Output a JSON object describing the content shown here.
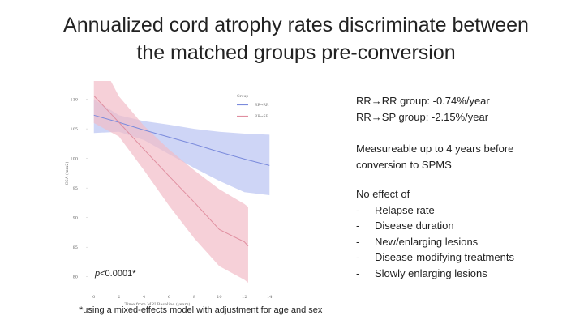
{
  "slide": {
    "title_line1": "Annualized cord atrophy rates discriminate between",
    "title_line2": "the matched groups pre-conversion",
    "rates": {
      "rr_rr": "RR→RR group: -0.74%/year",
      "rr_sp": "RR→SP group: -2.15%/year"
    },
    "measureable": "Measureable up to 4 years before conversion to SPMS",
    "no_effect": {
      "heading": "No effect of",
      "items": [
        "Relapse rate",
        "Disease duration",
        "New/enlarging lesions",
        "Disease-modifying treatments",
        "Slowly enlarging lesions"
      ]
    },
    "p_value_label": "p",
    "p_value_rest": "<0.0001*",
    "footnote": "*using a mixed-effects model with adjustment for age and sex"
  },
  "chart_data": {
    "type": "line",
    "title": "",
    "xlabel": "Time from MRI Baseline (years)",
    "ylabel": "CSA (mm2)",
    "xlim": [
      -0.5,
      14.5
    ],
    "ylim": [
      77.5,
      112
    ],
    "xticks": [
      0,
      2,
      4,
      6,
      8,
      10,
      12,
      14
    ],
    "yticks": [
      80,
      85,
      90,
      95,
      100,
      105,
      110
    ],
    "legend": {
      "title": "Group",
      "position": "top-right"
    },
    "series": [
      {
        "name": "RR→RR",
        "color": "#7b8bdc",
        "band_color": "#b9c3f2",
        "x": [
          0,
          2,
          4,
          6,
          8,
          10,
          12,
          14
        ],
        "y": [
          107.3,
          106.1,
          104.8,
          103.6,
          102.4,
          101.1,
          99.9,
          98.8
        ],
        "lower": [
          104.3,
          104.5,
          103.1,
          100.7,
          98.4,
          96.2,
          94.3,
          93.8
        ],
        "upper": [
          110.0,
          107.3,
          106.3,
          105.7,
          105.0,
          104.5,
          104.2,
          104.0
        ]
      },
      {
        "name": "RR→SP",
        "color": "#e08fa0",
        "band_color": "#f2bcc7",
        "x": [
          0,
          2,
          4,
          6,
          8,
          10,
          12,
          12.3
        ],
        "y": [
          110.6,
          106.1,
          101.5,
          97.0,
          92.6,
          88.0,
          85.9,
          85.2
        ],
        "lower": [
          106.0,
          103.7,
          98.0,
          92.0,
          86.5,
          81.8,
          79.5,
          79.0
        ],
        "upper": [
          118.5,
          110.5,
          105.5,
          101.5,
          98.0,
          94.8,
          92.3,
          91.8
        ]
      }
    ]
  }
}
